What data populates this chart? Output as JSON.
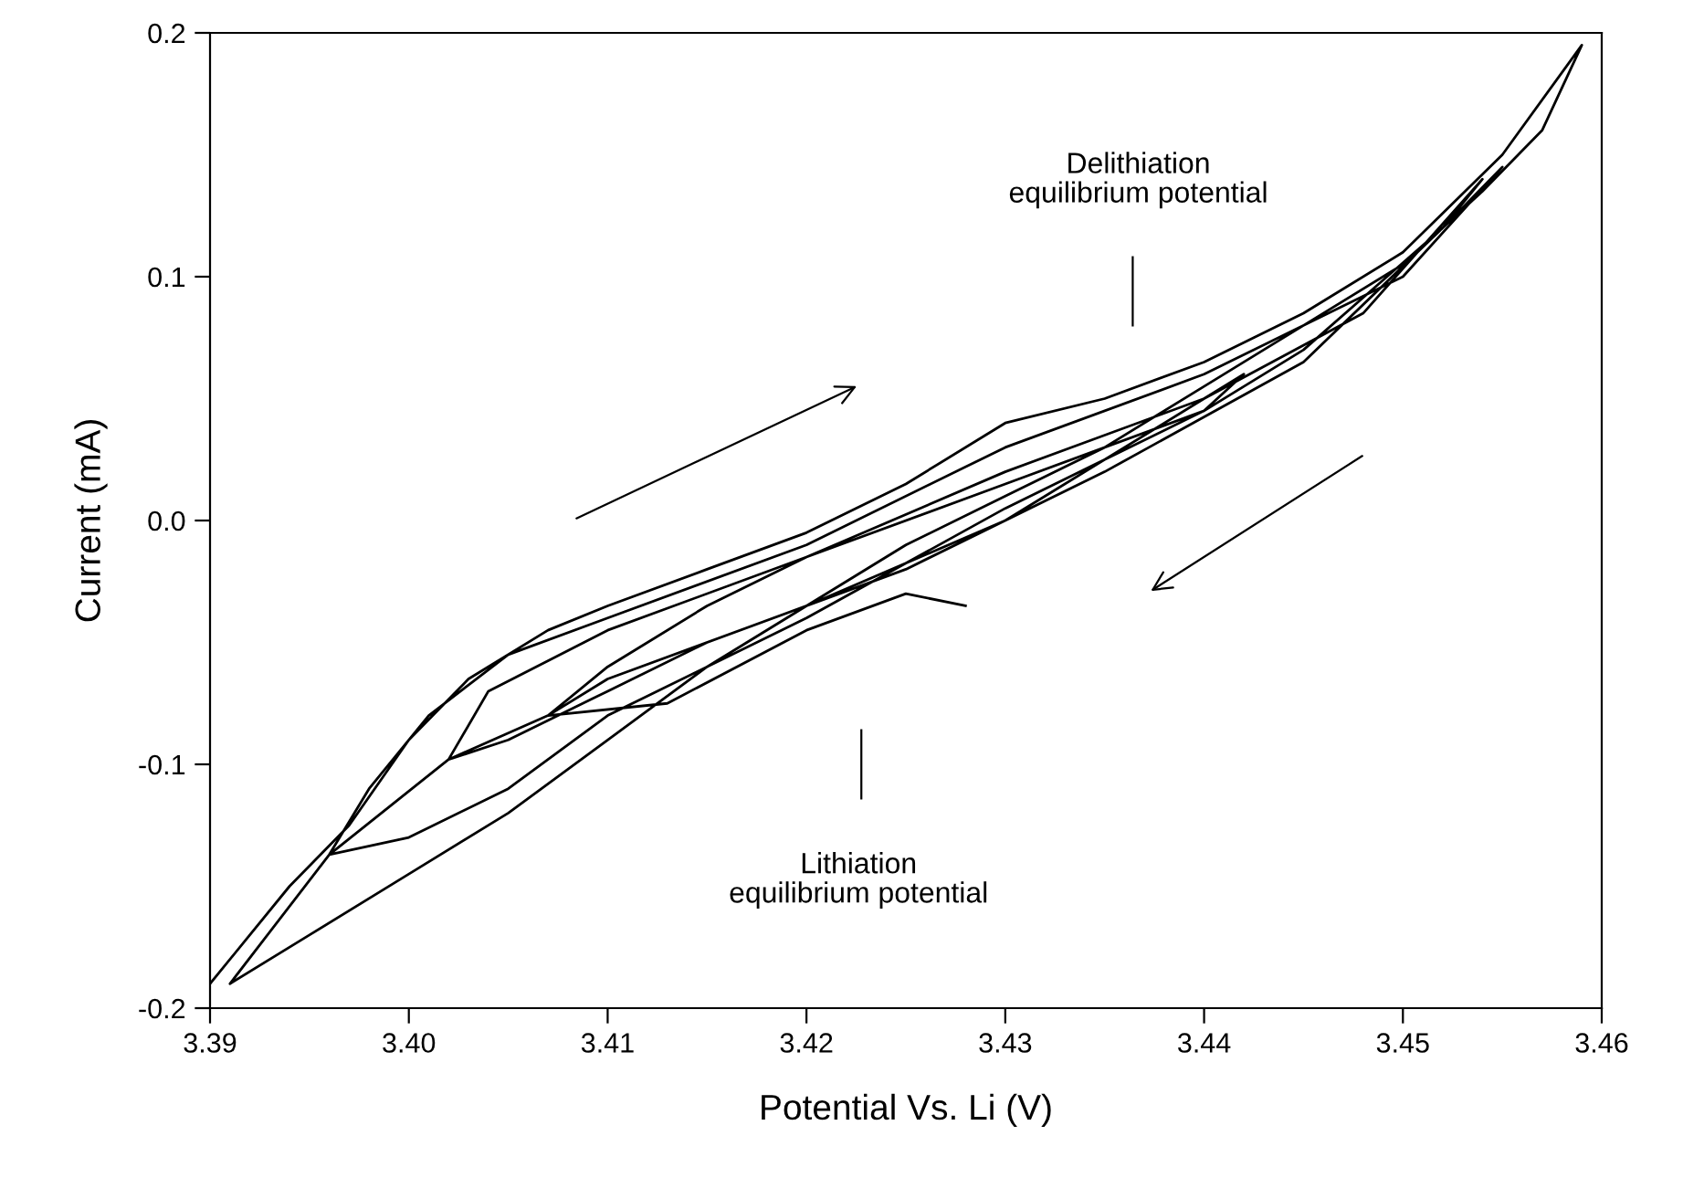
{
  "chart_data": {
    "type": "line",
    "xlabel": "Potential Vs. Li (V)",
    "ylabel": "Current (mA)",
    "xlim": [
      3.39,
      3.46
    ],
    "xticks": [
      {
        "value": 3.39,
        "label": "3.39"
      },
      {
        "value": 3.4,
        "label": "3.40"
      },
      {
        "value": 3.41,
        "label": "3.41"
      },
      {
        "value": 3.42,
        "label": "3.42"
      },
      {
        "value": 3.43,
        "label": "3.43"
      },
      {
        "value": 3.44,
        "label": "3.44"
      },
      {
        "value": 3.45,
        "label": "3.45"
      },
      {
        "value": 3.46,
        "label": "3.46"
      }
    ],
    "ylim": [
      -0.2,
      0.2
    ],
    "yticks": [
      {
        "value": -0.2,
        "label": "-0.2"
      },
      {
        "value": -0.1,
        "label": "-0.1"
      },
      {
        "value": 0.0,
        "label": "0.0"
      },
      {
        "value": 0.1,
        "label": "0.1"
      },
      {
        "value": 0.2,
        "label": "0.2"
      }
    ],
    "grid": false,
    "legend": false,
    "marker": "none",
    "line_style": "solid",
    "annotations": [
      "Delithiation\nequilibrium potential",
      "Lithiation\nequilibrium potential"
    ],
    "series": [
      {
        "color": "#000000",
        "x": [
          3.39,
          3.392,
          3.394,
          3.397,
          3.4,
          3.403,
          3.407,
          3.41,
          3.415,
          3.42,
          3.425,
          3.43,
          3.435,
          3.44,
          3.445,
          3.45,
          3.455,
          3.459,
          3.457,
          3.454,
          3.45,
          3.445,
          3.44,
          3.435,
          3.43,
          3.425,
          3.42,
          3.415,
          3.41,
          3.405,
          3.4,
          3.395,
          3.391,
          3.396,
          3.398,
          3.401,
          3.405,
          3.41,
          3.42,
          3.43,
          3.44,
          3.45,
          3.455,
          3.452,
          3.445,
          3.44,
          3.43,
          3.42,
          3.41,
          3.405,
          3.4,
          3.396,
          3.402,
          3.404,
          3.41,
          3.42,
          3.43,
          3.44,
          3.448,
          3.454,
          3.452,
          3.445,
          3.435,
          3.425,
          3.415,
          3.41,
          3.405,
          3.402,
          3.407,
          3.41,
          3.415,
          3.42,
          3.43,
          3.44,
          3.442,
          3.44,
          3.43,
          3.42,
          3.41,
          3.407,
          3.413,
          3.42,
          3.425,
          3.428
        ],
        "values": [
          -0.19,
          -0.17,
          -0.15,
          -0.125,
          -0.09,
          -0.065,
          -0.045,
          -0.035,
          -0.02,
          -0.005,
          0.015,
          0.04,
          0.05,
          0.065,
          0.085,
          0.11,
          0.15,
          0.195,
          0.16,
          0.135,
          0.105,
          0.08,
          0.055,
          0.03,
          0.01,
          -0.01,
          -0.035,
          -0.06,
          -0.09,
          -0.12,
          -0.145,
          -0.17,
          -0.19,
          -0.137,
          -0.11,
          -0.08,
          -0.055,
          -0.04,
          -0.01,
          0.03,
          0.06,
          0.1,
          0.145,
          0.12,
          0.07,
          0.045,
          0.005,
          -0.04,
          -0.08,
          -0.11,
          -0.13,
          -0.137,
          -0.098,
          -0.07,
          -0.045,
          -0.015,
          0.02,
          0.05,
          0.085,
          0.14,
          0.12,
          0.065,
          0.02,
          -0.02,
          -0.05,
          -0.07,
          -0.09,
          -0.098,
          -0.08,
          -0.06,
          -0.035,
          -0.015,
          0.015,
          0.045,
          0.06,
          0.05,
          0.0,
          -0.035,
          -0.065,
          -0.08,
          -0.075,
          -0.045,
          -0.03,
          -0.035
        ]
      }
    ]
  }
}
